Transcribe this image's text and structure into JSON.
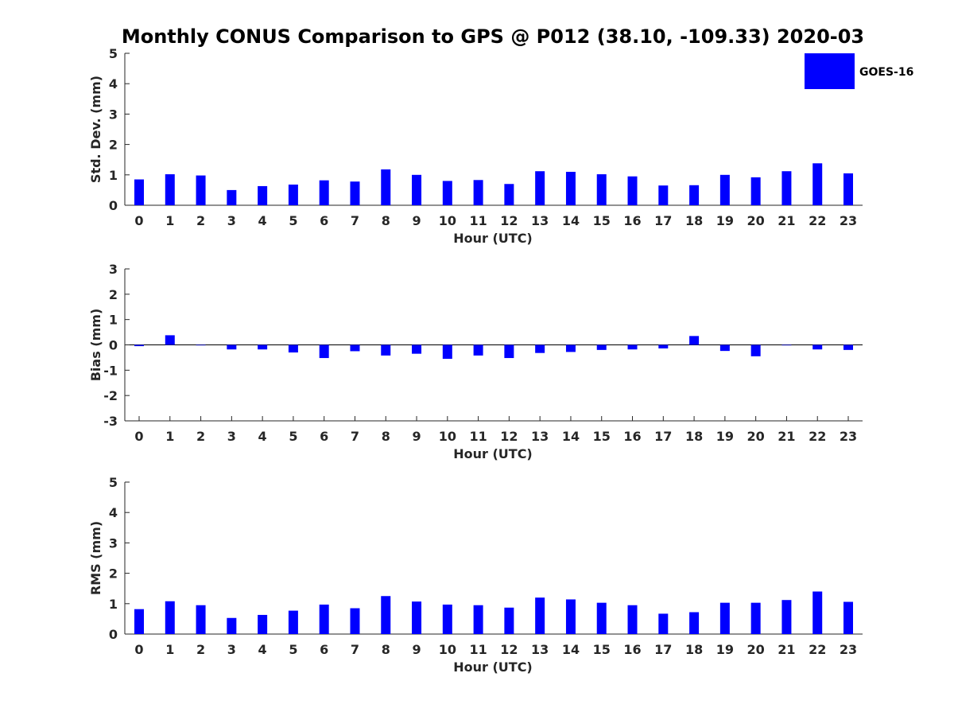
{
  "chart_data": {
    "title": "Monthly CONUS Comparison to GPS @ P012 (38.10, -109.33) 2020-03",
    "legend": {
      "label": "GOES-16",
      "placement": "top-right",
      "color": "#0000ff"
    },
    "colors": {
      "bar": "#0000ff",
      "axis": "#262626",
      "text": "#262626"
    },
    "panels": [
      {
        "type": "bar",
        "name": "std-dev",
        "xlabel": "Hour (UTC)",
        "ylabel": "Std. Dev. (mm)",
        "ylim": [
          0,
          5
        ],
        "yticks": [
          0,
          1,
          2,
          3,
          4,
          5
        ],
        "categories": [
          0,
          1,
          2,
          3,
          4,
          5,
          6,
          7,
          8,
          9,
          10,
          11,
          12,
          13,
          14,
          15,
          16,
          17,
          18,
          19,
          20,
          21,
          22,
          23
        ],
        "series": [
          {
            "name": "GOES-16",
            "values": [
              0.85,
              1.02,
              0.98,
              0.5,
              0.63,
              0.68,
              0.82,
              0.78,
              1.18,
              1.0,
              0.8,
              0.83,
              0.7,
              1.12,
              1.1,
              1.02,
              0.95,
              0.65,
              0.66,
              1.0,
              0.92,
              1.12,
              1.38,
              1.05
            ]
          }
        ]
      },
      {
        "type": "bar",
        "name": "bias",
        "xlabel": "Hour (UTC)",
        "ylabel": "Bias (mm)",
        "ylim": [
          -3,
          3
        ],
        "yticks": [
          -3,
          -2,
          -1,
          0,
          1,
          2,
          3
        ],
        "zero_line": true,
        "categories": [
          0,
          1,
          2,
          3,
          4,
          5,
          6,
          7,
          8,
          9,
          10,
          11,
          12,
          13,
          14,
          15,
          16,
          17,
          18,
          19,
          20,
          21,
          22,
          23
        ],
        "series": [
          {
            "name": "GOES-16",
            "values": [
              -0.05,
              0.38,
              -0.02,
              -0.18,
              -0.18,
              -0.3,
              -0.52,
              -0.25,
              -0.42,
              -0.35,
              -0.55,
              -0.42,
              -0.52,
              -0.32,
              -0.28,
              -0.2,
              -0.18,
              -0.14,
              0.35,
              -0.24,
              -0.45,
              -0.02,
              -0.18,
              -0.2
            ]
          }
        ]
      },
      {
        "type": "bar",
        "name": "rms",
        "xlabel": "Hour (UTC)",
        "ylabel": "RMS (mm)",
        "ylim": [
          0,
          5
        ],
        "yticks": [
          0,
          1,
          2,
          3,
          4,
          5
        ],
        "categories": [
          0,
          1,
          2,
          3,
          4,
          5,
          6,
          7,
          8,
          9,
          10,
          11,
          12,
          13,
          14,
          15,
          16,
          17,
          18,
          19,
          20,
          21,
          22,
          23
        ],
        "series": [
          {
            "name": "GOES-16",
            "values": [
              0.82,
              1.08,
              0.95,
              0.53,
              0.63,
              0.77,
              0.97,
              0.85,
              1.25,
              1.07,
              0.97,
              0.95,
              0.87,
              1.2,
              1.14,
              1.03,
              0.95,
              0.67,
              0.72,
              1.03,
              1.03,
              1.12,
              1.4,
              1.06
            ]
          }
        ]
      }
    ]
  }
}
